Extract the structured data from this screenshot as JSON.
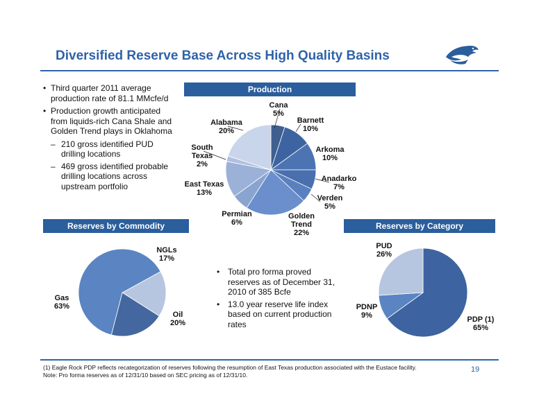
{
  "title": "Diversified Reserve Base Across High Quality Basins",
  "logo_icon": "eagle-logo-icon",
  "bullets": {
    "b1": "Third quarter 2011 average production rate of 81.1 MMcfe/d",
    "b2": "Production growth anticipated from liquids-rich Cana Shale and Golden Trend plays in Oklahoma",
    "d1": "210 gross identified PUD drilling locations",
    "d2": "469 gross identified probable drilling locations across upstream portfolio"
  },
  "headers": {
    "production": "Production",
    "commodity": "Reserves by Commodity",
    "category": "Reserves by Category"
  },
  "mid_bullets": {
    "m1": "Total pro forma proved reserves as of December 31, 2010 of 385 Bcfe",
    "m2": "13.0 year reserve life index based on current production rates"
  },
  "footnote": {
    "line1": "(1) Eagle Rock PDP reflects recategorization of reserves following the resumption of East Texas production associated with the Eustace facility.",
    "line2": "Note: Pro forma reserves as of 12/31/10 based on SEC pricing as of 12/31/10."
  },
  "page_number": "19",
  "colors": {
    "accent": "#2f62a8",
    "header_bar": "#2b5e9c",
    "slice_dark": "#3c65a0",
    "slice_mid": "#5a84c2",
    "slice_light": "#b7c6e0"
  },
  "chart_data": [
    {
      "type": "pie",
      "title": "Production",
      "slices": [
        {
          "label": "Cana",
          "value": 5
        },
        {
          "label": "Barnett",
          "value": 10
        },
        {
          "label": "Arkoma",
          "value": 10
        },
        {
          "label": "Anadarko",
          "value": 7
        },
        {
          "label": "Verden",
          "value": 5
        },
        {
          "label": "Golden Trend",
          "value": 22
        },
        {
          "label": "Permian",
          "value": 6
        },
        {
          "label": "East Texas",
          "value": 13
        },
        {
          "label": "South Texas",
          "value": 2
        },
        {
          "label": "Alabama",
          "value": 20
        }
      ]
    },
    {
      "type": "pie",
      "title": "Reserves by Commodity",
      "slices": [
        {
          "label": "NGLs",
          "value": 17
        },
        {
          "label": "Oil",
          "value": 20
        },
        {
          "label": "Gas",
          "value": 63
        }
      ]
    },
    {
      "type": "pie",
      "title": "Reserves by Category",
      "slices": [
        {
          "label": "PDP (1)",
          "value": 65
        },
        {
          "label": "PDNP",
          "value": 9
        },
        {
          "label": "PUD",
          "value": 26
        }
      ]
    }
  ]
}
